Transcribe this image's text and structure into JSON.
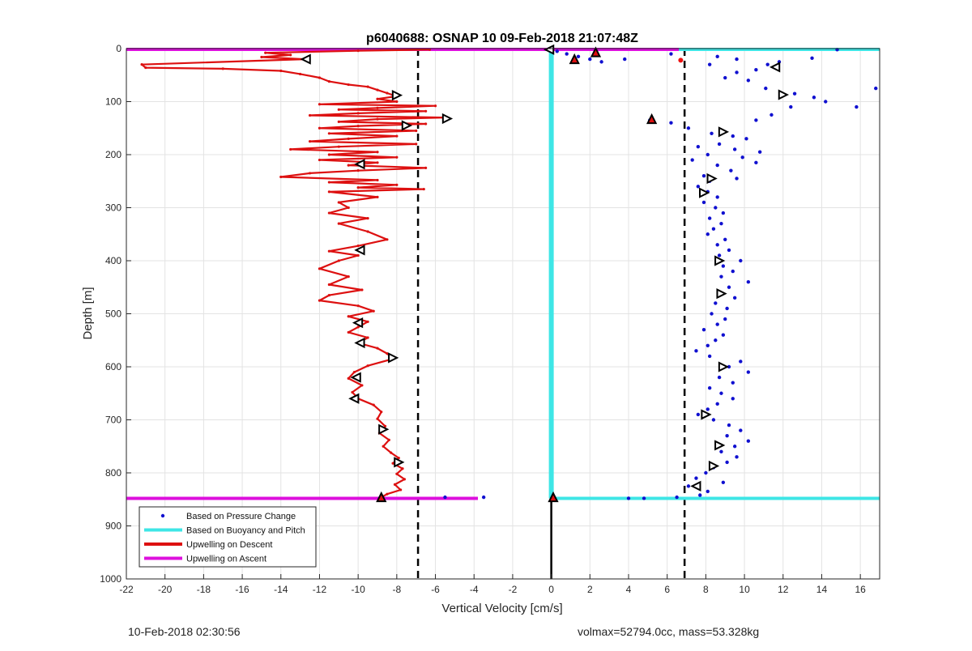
{
  "chart_data": {
    "type": "scatter",
    "title": "p6040688: OSNAP 10 09-Feb-2018 21:07:48Z",
    "xlabel": "Vertical Velocity [cm/s]",
    "ylabel": "Depth [m]",
    "xlim": [
      -22,
      17
    ],
    "ylim": [
      0,
      1000
    ],
    "y_reversed": true,
    "grid": true,
    "x_ticks": [
      -22,
      -20,
      -18,
      -16,
      -14,
      -12,
      -10,
      -8,
      -6,
      -4,
      -2,
      0,
      2,
      4,
      6,
      8,
      10,
      12,
      14,
      16
    ],
    "y_ticks": [
      0,
      100,
      200,
      300,
      400,
      500,
      600,
      700,
      800,
      900,
      1000
    ],
    "legend_position": "bottom-left",
    "legend": [
      {
        "label": "Based on Pressure Change",
        "color": "#1010d0",
        "style": "dot"
      },
      {
        "label": "Based on Buoyancy and Pitch",
        "color": "#3ee6e6",
        "style": "line"
      },
      {
        "label": "Upwelling on Descent",
        "color": "#dd1010",
        "style": "line"
      },
      {
        "label": "Upwelling on Ascent",
        "color": "#dd10dd",
        "style": "line"
      }
    ],
    "reference_lines": {
      "dashed_x": [
        -6.9,
        6.9
      ],
      "surface_depth": 0,
      "bottom_depth": 848,
      "descent_line_color": "#3ee6e6",
      "ascent_line_color": "#dd10dd",
      "zero_line_color": "#3ee6e6",
      "black_vertical_x": 0,
      "black_vertical_depth_range": [
        848,
        1000
      ]
    },
    "series": [
      {
        "name": "Upwelling on Descent",
        "color": "#dd1010",
        "points": [
          [
            -6.3,
            2
          ],
          [
            -10,
            4
          ],
          [
            -14.8,
            8
          ],
          [
            -13.5,
            12
          ],
          [
            -15,
            16
          ],
          [
            -12.8,
            20
          ],
          [
            -21.2,
            30
          ],
          [
            -21,
            36
          ],
          [
            -17,
            38
          ],
          [
            -14,
            42
          ],
          [
            -13,
            48
          ],
          [
            -12,
            55
          ],
          [
            -11.5,
            62
          ],
          [
            -10.5,
            68
          ],
          [
            -9.5,
            72
          ],
          [
            -9,
            78
          ],
          [
            -8.5,
            84
          ],
          [
            -8,
            90
          ],
          [
            -9,
            95
          ],
          [
            -8,
            100
          ],
          [
            -12,
            105
          ],
          [
            -6,
            108
          ],
          [
            -9,
            112
          ],
          [
            -11,
            115
          ],
          [
            -6.5,
            118
          ],
          [
            -10,
            122
          ],
          [
            -12.5,
            126
          ],
          [
            -5.5,
            130
          ],
          [
            -9,
            133
          ],
          [
            -11,
            138
          ],
          [
            -6.5,
            142
          ],
          [
            -10,
            146
          ],
          [
            -12,
            150
          ],
          [
            -7,
            155
          ],
          [
            -11.5,
            160
          ],
          [
            -8,
            165
          ],
          [
            -10.5,
            170
          ],
          [
            -12.5,
            175
          ],
          [
            -7,
            180
          ],
          [
            -11,
            185
          ],
          [
            -13.5,
            190
          ],
          [
            -9,
            195
          ],
          [
            -11.5,
            200
          ],
          [
            -8,
            205
          ],
          [
            -12,
            210
          ],
          [
            -9,
            215
          ],
          [
            -10.5,
            220
          ],
          [
            -6.5,
            225
          ],
          [
            -10,
            230
          ],
          [
            -12.5,
            235
          ],
          [
            -14,
            242
          ],
          [
            -9,
            248
          ],
          [
            -11.5,
            252
          ],
          [
            -8,
            257
          ],
          [
            -10,
            262
          ],
          [
            -6.6,
            265
          ],
          [
            -11.5,
            270
          ],
          [
            -9,
            280
          ],
          [
            -11,
            290
          ],
          [
            -10.5,
            300
          ],
          [
            -11.5,
            310
          ],
          [
            -9.5,
            320
          ],
          [
            -11,
            330
          ],
          [
            -9.5,
            345
          ],
          [
            -8.5,
            360
          ],
          [
            -10,
            372
          ],
          [
            -11.5,
            382
          ],
          [
            -10,
            390
          ],
          [
            -11,
            400
          ],
          [
            -12,
            415
          ],
          [
            -10.5,
            430
          ],
          [
            -11.5,
            445
          ],
          [
            -9.8,
            455
          ],
          [
            -11.5,
            465
          ],
          [
            -12,
            475
          ],
          [
            -10,
            485
          ],
          [
            -9.2,
            495
          ],
          [
            -10.5,
            505
          ],
          [
            -9.5,
            515
          ],
          [
            -10,
            525
          ],
          [
            -10.5,
            535
          ],
          [
            -9.5,
            545
          ],
          [
            -10,
            555
          ],
          [
            -9,
            565
          ],
          [
            -8.5,
            575
          ],
          [
            -8.2,
            585
          ],
          [
            -9.5,
            598
          ],
          [
            -10.2,
            610
          ],
          [
            -10.5,
            622
          ],
          [
            -9.8,
            635
          ],
          [
            -10.3,
            648
          ],
          [
            -10,
            660
          ],
          [
            -9.2,
            672
          ],
          [
            -8.8,
            685
          ],
          [
            -9,
            698
          ],
          [
            -8.6,
            712
          ],
          [
            -8.9,
            725
          ],
          [
            -8.4,
            738
          ],
          [
            -8.7,
            750
          ],
          [
            -8.3,
            762
          ],
          [
            -7.9,
            772
          ],
          [
            -8.2,
            782
          ],
          [
            -7.7,
            792
          ],
          [
            -8,
            802
          ],
          [
            -7.6,
            812
          ],
          [
            -8.1,
            822
          ],
          [
            -7.8,
            832
          ],
          [
            -8.5,
            840
          ],
          [
            -8.8,
            846
          ]
        ]
      },
      {
        "name": "Based on Pressure Change",
        "color": "#1010d0",
        "points": [
          [
            0.3,
            5
          ],
          [
            0.8,
            10
          ],
          [
            1.4,
            15
          ],
          [
            2.0,
            20
          ],
          [
            2.6,
            25
          ],
          [
            3.8,
            20
          ],
          [
            6.2,
            10
          ],
          [
            8.6,
            15
          ],
          [
            9.6,
            20
          ],
          [
            11.8,
            25
          ],
          [
            13.5,
            18
          ],
          [
            14.8,
            2
          ],
          [
            16.8,
            75
          ],
          [
            15.8,
            110
          ],
          [
            14.2,
            100
          ],
          [
            13.6,
            92
          ],
          [
            12.6,
            85
          ],
          [
            11.1,
            75
          ],
          [
            10.2,
            60
          ],
          [
            9.6,
            45
          ],
          [
            9,
            55
          ],
          [
            10.6,
            40
          ],
          [
            8.2,
            30
          ],
          [
            11.2,
            30
          ],
          [
            12.4,
            110
          ],
          [
            11.4,
            125
          ],
          [
            10.6,
            135
          ],
          [
            5.1,
            135
          ],
          [
            6.2,
            140
          ],
          [
            7.1,
            150
          ],
          [
            8.3,
            160
          ],
          [
            9.4,
            165
          ],
          [
            10.1,
            170
          ],
          [
            8.7,
            180
          ],
          [
            7.6,
            185
          ],
          [
            9.5,
            190
          ],
          [
            10.8,
            195
          ],
          [
            8.1,
            200
          ],
          [
            9.9,
            205
          ],
          [
            7.3,
            210
          ],
          [
            10.6,
            215
          ],
          [
            8.6,
            220
          ],
          [
            9.3,
            230
          ],
          [
            7.9,
            240
          ],
          [
            9.6,
            245
          ],
          [
            8.2,
            250
          ],
          [
            7.6,
            260
          ],
          [
            8.1,
            270
          ],
          [
            8.6,
            280
          ],
          [
            7.9,
            290
          ],
          [
            8.5,
            300
          ],
          [
            8.9,
            310
          ],
          [
            8.2,
            320
          ],
          [
            8.8,
            330
          ],
          [
            8.4,
            340
          ],
          [
            8.1,
            350
          ],
          [
            9.0,
            360
          ],
          [
            8.6,
            370
          ],
          [
            9.2,
            380
          ],
          [
            8.7,
            390
          ],
          [
            9.8,
            400
          ],
          [
            8.9,
            410
          ],
          [
            9.4,
            420
          ],
          [
            8.8,
            430
          ],
          [
            10.2,
            440
          ],
          [
            9.2,
            450
          ],
          [
            8.7,
            460
          ],
          [
            9.5,
            470
          ],
          [
            8.5,
            480
          ],
          [
            9.1,
            490
          ],
          [
            8.3,
            500
          ],
          [
            9.0,
            510
          ],
          [
            8.6,
            520
          ],
          [
            7.9,
            530
          ],
          [
            8.9,
            540
          ],
          [
            8.5,
            550
          ],
          [
            8.1,
            560
          ],
          [
            7.5,
            570
          ],
          [
            8.2,
            580
          ],
          [
            9.8,
            590
          ],
          [
            9.2,
            600
          ],
          [
            10.2,
            610
          ],
          [
            8.7,
            620
          ],
          [
            9.4,
            630
          ],
          [
            8.2,
            640
          ],
          [
            8.8,
            650
          ],
          [
            9.4,
            660
          ],
          [
            8.6,
            670
          ],
          [
            8.1,
            680
          ],
          [
            7.6,
            690
          ],
          [
            8.4,
            700
          ],
          [
            9.2,
            710
          ],
          [
            9.8,
            720
          ],
          [
            9.1,
            730
          ],
          [
            10.2,
            740
          ],
          [
            9.5,
            750
          ],
          [
            8.8,
            760
          ],
          [
            9.6,
            770
          ],
          [
            9.1,
            780
          ],
          [
            8.4,
            790
          ],
          [
            8.0,
            800
          ],
          [
            7.5,
            810
          ],
          [
            8.9,
            818
          ],
          [
            7.1,
            825
          ],
          [
            8.1,
            835
          ],
          [
            7.7,
            842
          ],
          [
            4.0,
            848
          ],
          [
            4.8,
            848
          ],
          [
            6.5,
            846
          ],
          [
            -3.5,
            846
          ],
          [
            -5.5,
            846
          ]
        ]
      }
    ],
    "triangle_markers": [
      {
        "x": -12.7,
        "y": 20,
        "dir": "left"
      },
      {
        "x": -8.0,
        "y": 88,
        "dir": "right"
      },
      {
        "x": -5.4,
        "y": 132,
        "dir": "right"
      },
      {
        "x": -7.5,
        "y": 145,
        "dir": "right"
      },
      {
        "x": -9.9,
        "y": 218,
        "dir": "left"
      },
      {
        "x": -9.9,
        "y": 380,
        "dir": "left"
      },
      {
        "x": -10.0,
        "y": 517,
        "dir": "left"
      },
      {
        "x": -9.9,
        "y": 555,
        "dir": "left"
      },
      {
        "x": -8.2,
        "y": 583,
        "dir": "right"
      },
      {
        "x": -10.1,
        "y": 620,
        "dir": "left"
      },
      {
        "x": -10.2,
        "y": 660,
        "dir": "left"
      },
      {
        "x": -8.7,
        "y": 718,
        "dir": "right"
      },
      {
        "x": -7.9,
        "y": 780,
        "dir": "right"
      },
      {
        "x": 11.6,
        "y": 35,
        "dir": "left"
      },
      {
        "x": 12.0,
        "y": 87,
        "dir": "right"
      },
      {
        "x": 8.9,
        "y": 157,
        "dir": "right"
      },
      {
        "x": 8.3,
        "y": 245,
        "dir": "right"
      },
      {
        "x": 7.9,
        "y": 272,
        "dir": "right"
      },
      {
        "x": 8.7,
        "y": 400,
        "dir": "right"
      },
      {
        "x": 8.8,
        "y": 462,
        "dir": "right"
      },
      {
        "x": 8.9,
        "y": 600,
        "dir": "right"
      },
      {
        "x": 8.0,
        "y": 690,
        "dir": "right"
      },
      {
        "x": 8.7,
        "y": 748,
        "dir": "right"
      },
      {
        "x": 8.4,
        "y": 787,
        "dir": "right"
      },
      {
        "x": 7.5,
        "y": 825,
        "dir": "left"
      },
      {
        "x": -0.1,
        "y": 2,
        "dir": "left"
      }
    ],
    "filled_triangles": [
      {
        "x": 1.2,
        "y": 20
      },
      {
        "x": 2.3,
        "y": 7
      },
      {
        "x": 5.2,
        "y": 133
      },
      {
        "x": -8.8,
        "y": 846
      },
      {
        "x": 0.1,
        "y": 846
      }
    ],
    "red_dots": [
      {
        "x": 6.7,
        "y": 22
      }
    ]
  },
  "footer": {
    "timestamp": "10-Feb-2018 02:30:56",
    "summary": "volmax=52794.0cc, mass=53.328kg"
  }
}
